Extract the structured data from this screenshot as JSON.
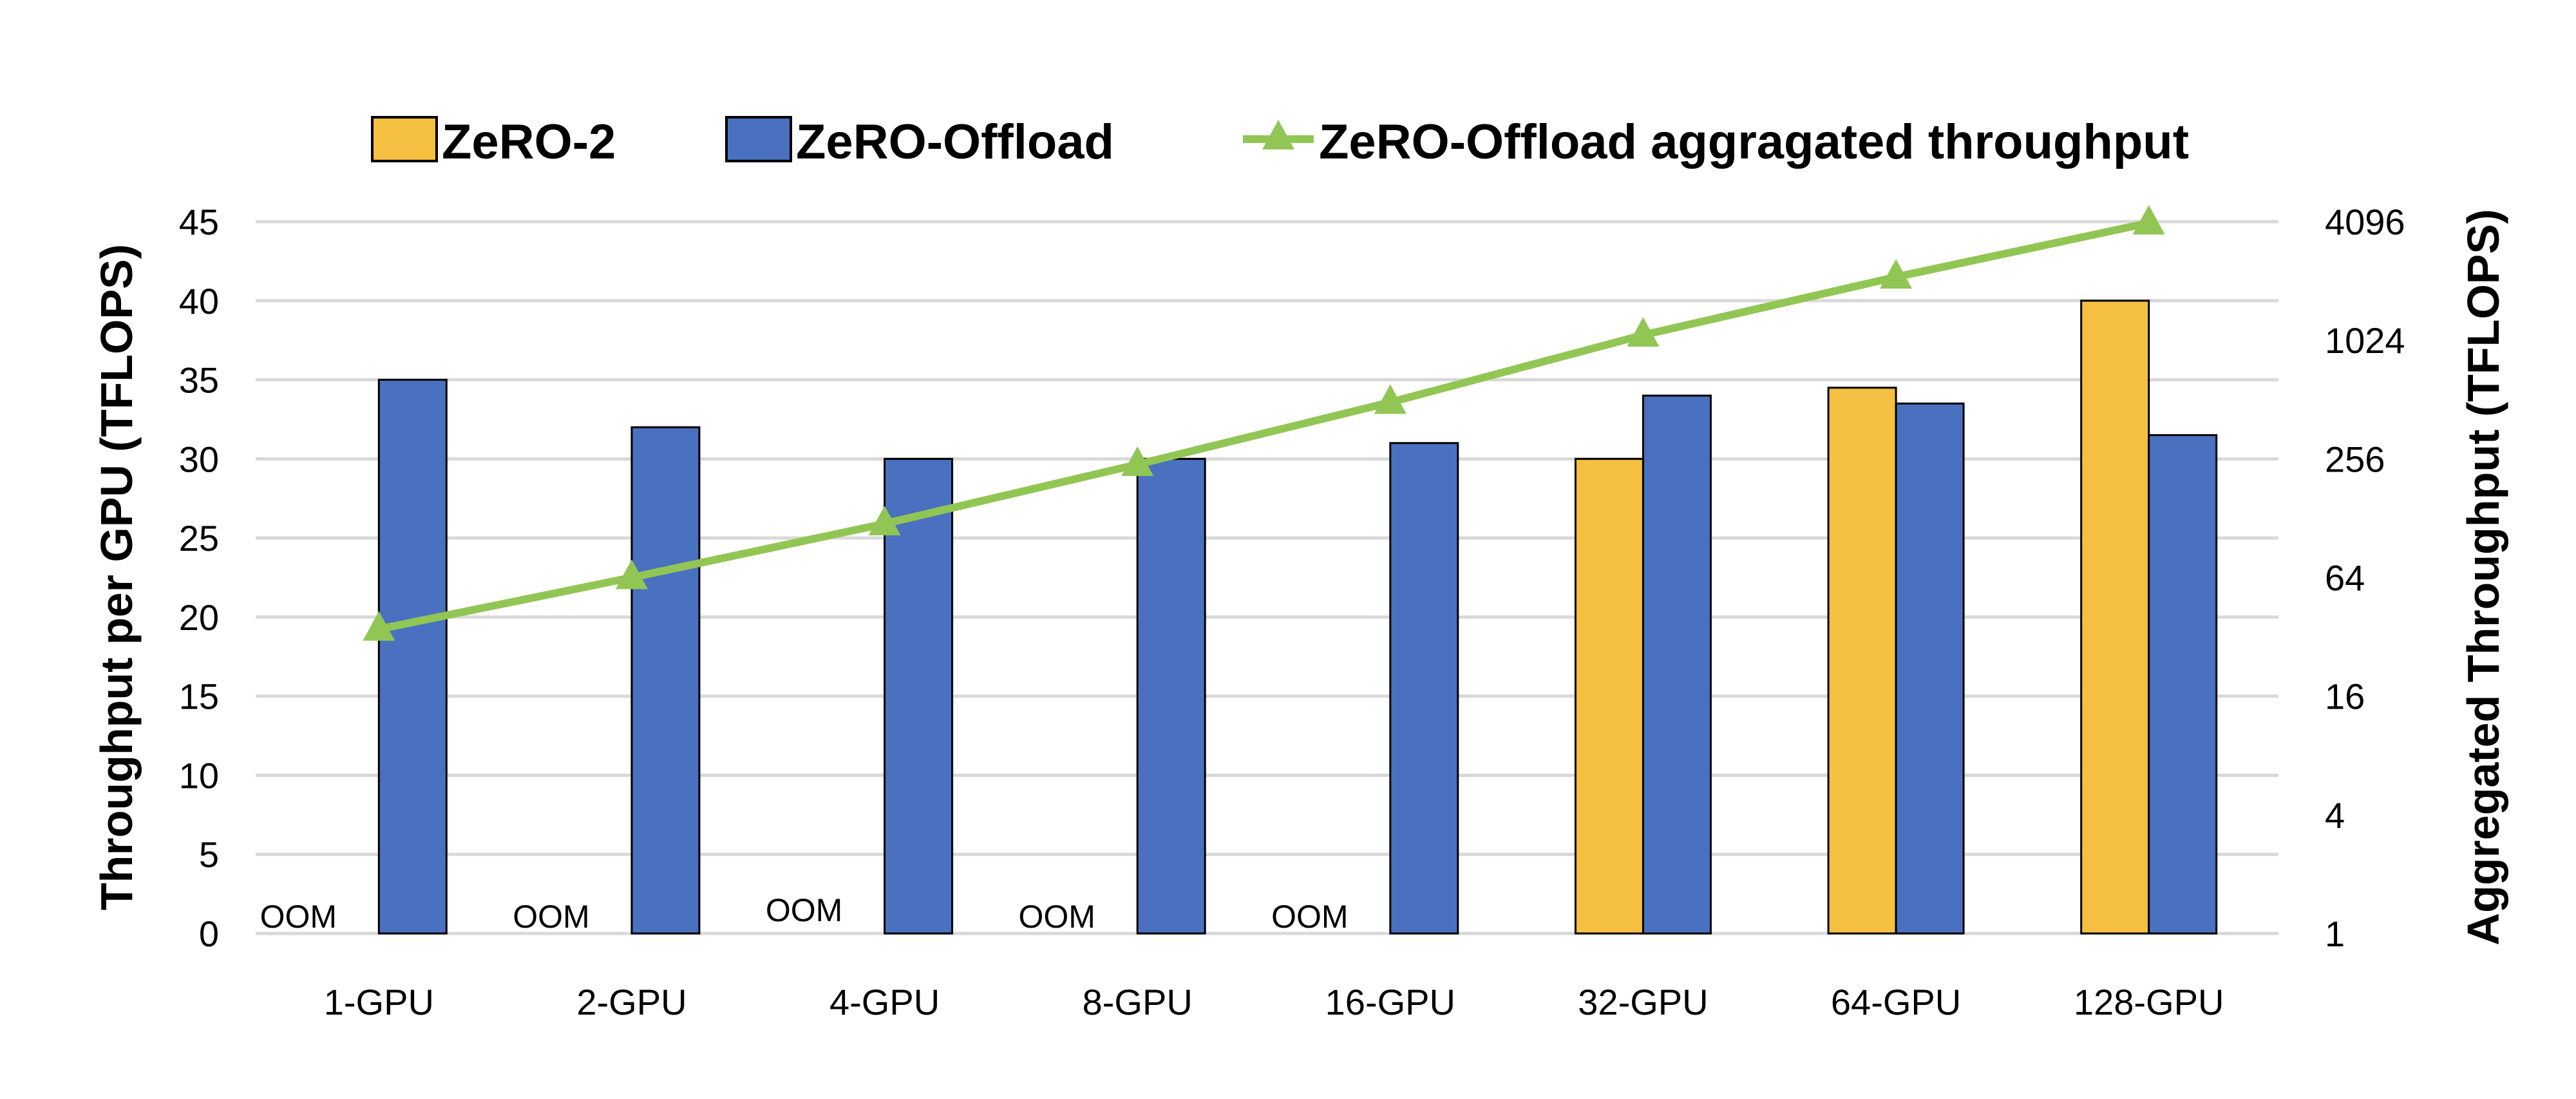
{
  "chart_data": {
    "type": "bar",
    "categories": [
      "1-GPU",
      "2-GPU",
      "4-GPU",
      "8-GPU",
      "16-GPU",
      "32-GPU",
      "64-GPU",
      "128-GPU"
    ],
    "series": [
      {
        "name": "ZeRO-2",
        "type": "bar",
        "axis": "left",
        "color": "#F5BF42",
        "values": [
          null,
          null,
          null,
          null,
          null,
          30,
          34.5,
          40
        ]
      },
      {
        "name": "ZeRO-Offload",
        "type": "bar",
        "axis": "left",
        "color": "#4A70C0",
        "values": [
          35,
          32,
          30,
          30,
          31,
          34,
          33.5,
          31.5
        ]
      },
      {
        "name": "ZeRO-Offload aggragated throughput",
        "type": "line",
        "axis": "right",
        "color": "#92C654",
        "marker": "triangle",
        "values": [
          35,
          64,
          120,
          240,
          496,
          1088,
          2144,
          4032
        ]
      }
    ],
    "annotations": [
      {
        "category": "1-GPU",
        "text": "OOM"
      },
      {
        "category": "2-GPU",
        "text": "OOM"
      },
      {
        "category": "4-GPU",
        "text": "OOM"
      },
      {
        "category": "8-GPU",
        "text": "OOM"
      },
      {
        "category": "16-GPU",
        "text": "OOM"
      }
    ],
    "ylabel": "Throughput per GPU (TFLOPS)",
    "ylim": [
      0,
      45
    ],
    "yticks": [
      "0",
      "5",
      "10",
      "15",
      "20",
      "25",
      "30",
      "35",
      "40",
      "45"
    ],
    "y2label": "Aggregated Throughput (TFLOPS)",
    "y2scale": "log2",
    "y2lim": [
      1,
      4096
    ],
    "y2ticks": [
      "1",
      "4",
      "16",
      "64",
      "256",
      "1024",
      "4096"
    ],
    "grid": true,
    "legend_position": "top"
  }
}
